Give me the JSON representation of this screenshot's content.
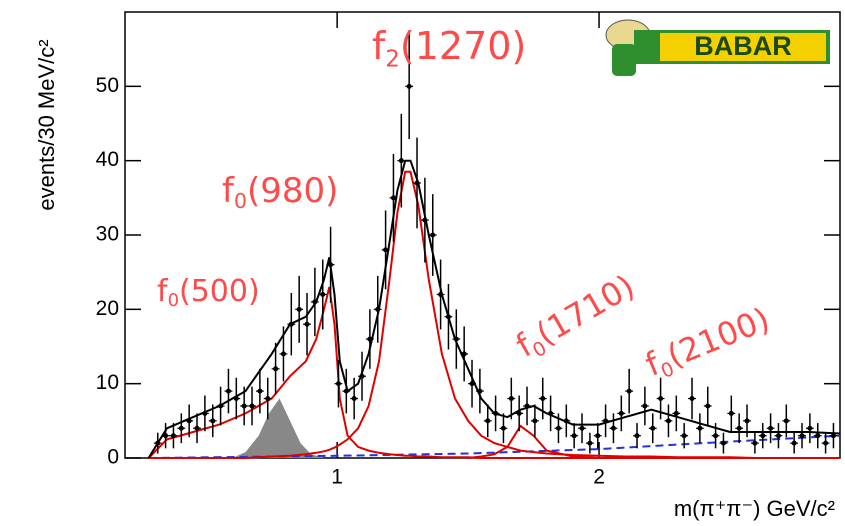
{
  "chart_data": {
    "type": "scatter",
    "xlabel": "m(π⁺π⁻) GeV/c²",
    "ylabel": "events/30 MeV/c²",
    "logo": "BABAR",
    "xlim": [
      0.19,
      2.92
    ],
    "ylim": [
      0,
      60
    ],
    "xticks": [
      1,
      2
    ],
    "yticks": [
      0,
      10,
      20,
      30,
      40,
      50
    ],
    "points": {
      "color": "#000000",
      "x": [
        0.315,
        0.345,
        0.375,
        0.405,
        0.435,
        0.465,
        0.495,
        0.525,
        0.555,
        0.585,
        0.615,
        0.645,
        0.675,
        0.705,
        0.735,
        0.765,
        0.795,
        0.825,
        0.855,
        0.885,
        0.915,
        0.945,
        0.975,
        1.005,
        1.035,
        1.065,
        1.095,
        1.125,
        1.155,
        1.185,
        1.215,
        1.245,
        1.275,
        1.305,
        1.335,
        1.365,
        1.395,
        1.425,
        1.455,
        1.485,
        1.515,
        1.545,
        1.575,
        1.605,
        1.635,
        1.665,
        1.695,
        1.725,
        1.755,
        1.785,
        1.815,
        1.845,
        1.875,
        1.905,
        1.935,
        1.965,
        1.995,
        2.025,
        2.055,
        2.085,
        2.115,
        2.145,
        2.175,
        2.205,
        2.235,
        2.265,
        2.295,
        2.325,
        2.355,
        2.385,
        2.415,
        2.445,
        2.475,
        2.505,
        2.535,
        2.565,
        2.595,
        2.625,
        2.655,
        2.685,
        2.715,
        2.745,
        2.775,
        2.805,
        2.835,
        2.865,
        2.895
      ],
      "values": [
        2,
        3,
        3,
        4,
        5,
        4,
        6,
        5,
        7,
        9,
        8,
        7,
        7,
        9,
        8,
        12,
        14,
        18,
        20,
        18,
        21,
        22,
        26,
        10,
        9,
        8,
        11,
        16,
        20,
        28,
        35,
        40,
        50,
        37,
        32,
        30,
        22,
        19,
        16,
        14,
        10,
        9,
        5,
        6,
        4,
        8,
        6,
        7,
        5,
        8,
        6,
        4,
        5,
        3,
        4,
        2,
        3,
        5,
        4,
        6,
        9,
        3,
        7,
        4,
        8,
        5,
        6,
        3,
        8,
        4,
        7,
        3,
        2,
        6,
        4,
        5,
        2,
        3,
        4,
        3,
        5,
        2,
        3,
        4,
        3,
        2,
        3
      ],
      "errors": [
        1.4,
        1.7,
        1.7,
        2,
        2.2,
        2,
        2.4,
        2.2,
        2.6,
        3,
        2.8,
        2.6,
        2.6,
        3,
        2.8,
        3.5,
        3.7,
        4.2,
        4.5,
        4.2,
        4.6,
        4.7,
        5.1,
        3.2,
        3,
        2.8,
        3.3,
        4,
        4.5,
        5.3,
        5.9,
        6.3,
        7.1,
        6.1,
        5.7,
        5.5,
        4.7,
        4.4,
        4,
        3.7,
        3.2,
        3,
        2.2,
        2.4,
        2,
        2.8,
        2.4,
        2.6,
        2.2,
        2.8,
        2.4,
        2,
        2.2,
        1.7,
        2,
        1.4,
        1.7,
        2.2,
        2,
        2.4,
        3,
        1.7,
        2.6,
        2,
        2.8,
        2.2,
        2.4,
        1.7,
        2.8,
        2,
        2.6,
        1.7,
        1.4,
        2.4,
        2,
        2.2,
        1.4,
        1.7,
        2,
        1.7,
        2.2,
        1.4,
        1.7,
        2,
        1.7,
        1.4,
        1.7
      ]
    },
    "curves": [
      {
        "color": "#888888",
        "fill": true,
        "x": [
          0.6,
          0.65,
          0.7,
          0.74,
          0.78,
          0.82,
          0.86,
          0.9,
          0.95
        ],
        "values": [
          0,
          0.8,
          3,
          6,
          8,
          5,
          2,
          0.5,
          0
        ]
      },
      {
        "color": "#2233dd",
        "dashed": true,
        "x": [
          0.28,
          1.0,
          1.5,
          2.0,
          2.5,
          2.92
        ],
        "values": [
          0,
          0.3,
          0.6,
          1.2,
          2.2,
          3
        ]
      },
      {
        "color": "#e00000",
        "x": [
          0.28,
          0.35,
          0.45,
          0.55,
          0.65,
          0.75,
          0.82,
          0.88,
          0.92,
          0.95,
          0.97,
          0.99,
          1.01,
          1.04,
          1.08,
          1.12,
          1.16,
          1.2,
          1.23,
          1.26,
          1.28,
          1.31,
          1.35,
          1.4,
          1.45,
          1.5,
          1.55,
          1.6,
          1.65,
          1.7,
          1.75,
          1.8,
          1.9,
          2.0,
          2.1,
          2.2,
          2.3,
          2.4,
          2.5,
          2.6,
          2.7,
          2.8,
          2.92
        ],
        "values": [
          0,
          2.5,
          3.5,
          4.5,
          6,
          8,
          11,
          13,
          16,
          20,
          23,
          18,
          8,
          3,
          1.5,
          1,
          0.7,
          0.5,
          0.4,
          0.3,
          0.3,
          0.2,
          0.2,
          0.1,
          0.1,
          0.1,
          0,
          0,
          0,
          0,
          0,
          0,
          0,
          0,
          0,
          0,
          0,
          0,
          0,
          0,
          0,
          0,
          0
        ]
      },
      {
        "color": "#e00000",
        "x": [
          0.28,
          0.35,
          0.45,
          0.55,
          0.65,
          0.75,
          0.82,
          0.88,
          0.92,
          0.95,
          0.97,
          0.99,
          1.01,
          1.04,
          1.08,
          1.12,
          1.16,
          1.2,
          1.23,
          1.26,
          1.28,
          1.31,
          1.35,
          1.4,
          1.45,
          1.5,
          1.55,
          1.6,
          1.65,
          1.7,
          1.75,
          1.8,
          1.9,
          2.0,
          2.1,
          2.2,
          2.3,
          2.4,
          2.5,
          2.6,
          2.7,
          2.8,
          2.92
        ],
        "values": [
          0,
          0,
          0,
          0,
          0,
          0.2,
          0.3,
          0.5,
          0.7,
          0.9,
          1.1,
          1.4,
          1.8,
          2.5,
          4,
          7,
          13,
          24,
          33,
          38.5,
          38.5,
          34,
          24,
          14,
          8,
          5,
          3,
          2,
          1.5,
          1,
          0.8,
          0.6,
          0.4,
          0.3,
          0.2,
          0.2,
          0.1,
          0.1,
          0.1,
          0,
          0,
          0,
          0
        ]
      },
      {
        "color": "#e00000",
        "x": [
          1.5,
          1.55,
          1.6,
          1.65,
          1.7,
          1.75,
          1.8,
          1.9,
          2.0
        ],
        "values": [
          0,
          0.2,
          0.5,
          1.5,
          4.3,
          3,
          1,
          0.2,
          0
        ]
      },
      {
        "color": "#000000",
        "x": [
          0.28,
          0.35,
          0.45,
          0.55,
          0.65,
          0.75,
          0.82,
          0.88,
          0.92,
          0.95,
          0.97,
          0.99,
          1.01,
          1.04,
          1.08,
          1.12,
          1.16,
          1.2,
          1.23,
          1.26,
          1.28,
          1.31,
          1.35,
          1.4,
          1.45,
          1.5,
          1.55,
          1.6,
          1.65,
          1.7,
          1.75,
          1.8,
          1.9,
          2.0,
          2.1,
          2.2,
          2.3,
          2.4,
          2.5,
          2.6,
          2.7,
          2.8,
          2.92
        ],
        "values": [
          0,
          4,
          5.5,
          7,
          9,
          14,
          18,
          19,
          21,
          24,
          27,
          22,
          13,
          9,
          10,
          14,
          20,
          29,
          36,
          40,
          40,
          37,
          30,
          22,
          16,
          12,
          8,
          6,
          5.5,
          6.5,
          7,
          6,
          4.5,
          4.5,
          5.5,
          6.5,
          5.5,
          4.5,
          3.5,
          3.5,
          3.5,
          3.5,
          3.3
        ]
      }
    ],
    "annotations": [
      {
        "text": "f",
        "sub": "2",
        "suffix": "(1270)"
      },
      {
        "text": "f",
        "sub": "0",
        "suffix": "(980)"
      },
      {
        "text": "f",
        "sub": "0",
        "suffix": "(500)"
      },
      {
        "text": "f",
        "sub": "0",
        "suffix": "(1710)"
      },
      {
        "text": "f",
        "sub": "0",
        "suffix": "(2100)"
      }
    ]
  }
}
